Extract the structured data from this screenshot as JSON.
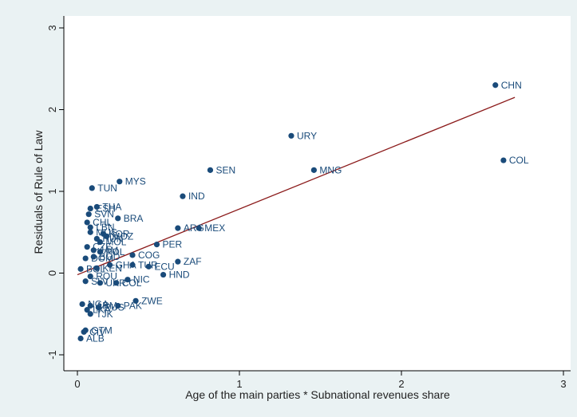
{
  "chart_data": {
    "type": "scatter",
    "xlabel": "Age of the main parties * Subnational revenues share",
    "ylabel": "Residuals of Rule of Law",
    "xlim": [
      0,
      3
    ],
    "ylim": [
      -1,
      3
    ],
    "xticks": [
      0,
      1,
      2,
      3
    ],
    "yticks": [
      -1,
      0,
      1,
      2,
      3
    ],
    "grid": false,
    "colors": {
      "points": "#1a4b7a",
      "fit_line": "#8b1a1a",
      "background": "#eaf2f3",
      "plot_background": "#ffffff"
    },
    "fit_line": {
      "x": [
        0,
        2.7
      ],
      "y": [
        -0.02,
        2.15
      ]
    },
    "points": [
      {
        "label": "CHN",
        "x": 2.58,
        "y": 2.3
      },
      {
        "label": "COL",
        "x": 2.63,
        "y": 1.38
      },
      {
        "label": "URY",
        "x": 1.32,
        "y": 1.68
      },
      {
        "label": "MNG",
        "x": 1.46,
        "y": 1.26
      },
      {
        "label": "SEN",
        "x": 0.82,
        "y": 1.26
      },
      {
        "label": "MYS",
        "x": 0.26,
        "y": 1.12
      },
      {
        "label": "TUN",
        "x": 0.09,
        "y": 1.04
      },
      {
        "label": "IND",
        "x": 0.65,
        "y": 0.94
      },
      {
        "label": "THA",
        "x": 0.12,
        "y": 0.81
      },
      {
        "label": "ESH",
        "x": 0.08,
        "y": 0.79
      },
      {
        "label": "SVN",
        "x": 0.07,
        "y": 0.72
      },
      {
        "label": "BRA",
        "x": 0.25,
        "y": 0.67
      },
      {
        "label": "CHL",
        "x": 0.06,
        "y": 0.62
      },
      {
        "label": "LBN",
        "x": 0.08,
        "y": 0.56
      },
      {
        "label": "ARG",
        "x": 0.62,
        "y": 0.55
      },
      {
        "label": "MEX",
        "x": 0.75,
        "y": 0.55
      },
      {
        "label": "MUS",
        "x": 0.08,
        "y": 0.5
      },
      {
        "label": "KOR",
        "x": 0.16,
        "y": 0.48
      },
      {
        "label": "MOZ",
        "x": 0.18,
        "y": 0.45
      },
      {
        "label": "HUN",
        "x": 0.12,
        "y": 0.42
      },
      {
        "label": "MOL",
        "x": 0.14,
        "y": 0.38
      },
      {
        "label": "PER",
        "x": 0.49,
        "y": 0.35
      },
      {
        "label": "CZE",
        "x": 0.06,
        "y": 0.32
      },
      {
        "label": "JAM",
        "x": 0.1,
        "y": 0.28
      },
      {
        "label": "POL",
        "x": 0.14,
        "y": 0.26
      },
      {
        "label": "COG",
        "x": 0.34,
        "y": 0.22
      },
      {
        "label": "BGD",
        "x": 0.1,
        "y": 0.2
      },
      {
        "label": "DOM",
        "x": 0.05,
        "y": 0.18
      },
      {
        "label": "ZAF",
        "x": 0.62,
        "y": 0.14
      },
      {
        "label": "TUR",
        "x": 0.34,
        "y": 0.1
      },
      {
        "label": "ECU",
        "x": 0.44,
        "y": 0.08
      },
      {
        "label": "GHA",
        "x": 0.2,
        "y": 0.1
      },
      {
        "label": "KEN",
        "x": 0.12,
        "y": 0.06
      },
      {
        "label": "BOL",
        "x": 0.02,
        "y": 0.05
      },
      {
        "label": "HND",
        "x": 0.53,
        "y": -0.02
      },
      {
        "label": "ROU",
        "x": 0.08,
        "y": -0.04
      },
      {
        "label": "NIC",
        "x": 0.31,
        "y": -0.08
      },
      {
        "label": "SLV",
        "x": 0.05,
        "y": -0.1
      },
      {
        "label": "UKR",
        "x": 0.14,
        "y": -0.12
      },
      {
        "label": "COL",
        "x": 0.24,
        "y": -0.12
      },
      {
        "label": "ZWE",
        "x": 0.36,
        "y": -0.34
      },
      {
        "label": "PAK",
        "x": 0.25,
        "y": -0.4
      },
      {
        "label": "NGA",
        "x": 0.03,
        "y": -0.38
      },
      {
        "label": "ARM",
        "x": 0.08,
        "y": -0.4
      },
      {
        "label": "RUS",
        "x": 0.13,
        "y": -0.42
      },
      {
        "label": "LKA",
        "x": 0.06,
        "y": -0.45
      },
      {
        "label": "TJK",
        "x": 0.08,
        "y": -0.5
      },
      {
        "label": "GTM",
        "x": 0.05,
        "y": -0.7
      },
      {
        "label": "CIV",
        "x": 0.04,
        "y": -0.72
      },
      {
        "label": "ALB",
        "x": 0.02,
        "y": -0.8
      }
    ]
  }
}
